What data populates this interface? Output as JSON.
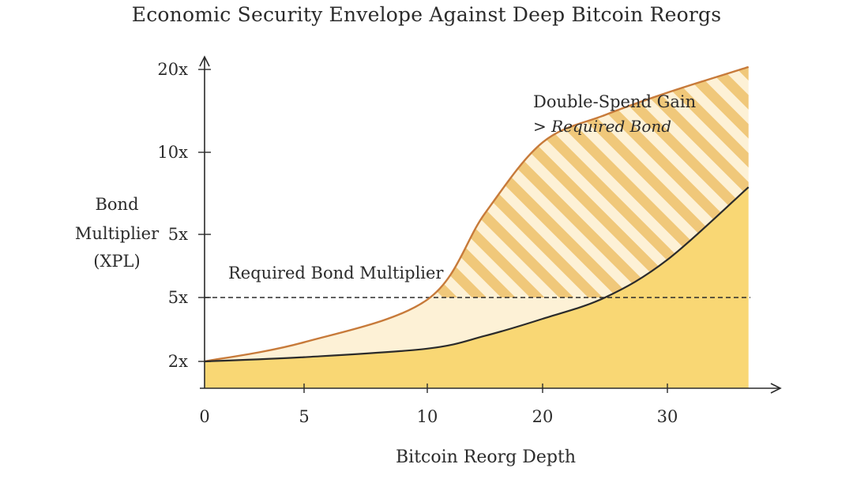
{
  "chart_data": {
    "type": "area",
    "title": "Economic Security Envelope Against Deep Bitcoin Reorgs",
    "xlabel": "Bitcoin Reorg Depth",
    "ylabel_lines": [
      "Bond",
      "Multiplier",
      "(XPL)"
    ],
    "x_ticks": [
      "0",
      "5",
      "10",
      "20",
      "30"
    ],
    "y_ticks": [
      "2x",
      "5x",
      "5x",
      "10x",
      "20x"
    ],
    "xlim": [
      0,
      37
    ],
    "series": [
      {
        "name": "Required Bond Multiplier",
        "color": "#2b2b2b",
        "points": [
          [
            0,
            2.0
          ],
          [
            5,
            2.2
          ],
          [
            10,
            2.6
          ],
          [
            15,
            3.2
          ],
          [
            20,
            4.0
          ],
          [
            25,
            5.0
          ],
          [
            30,
            6.3
          ],
          [
            36.5,
            8.8
          ]
        ]
      },
      {
        "name": "Double-Spend Gain",
        "color": "#c77a3a",
        "points": [
          [
            0,
            2.0
          ],
          [
            5,
            2.9
          ],
          [
            10,
            4.9
          ],
          [
            15,
            7.9
          ],
          [
            20,
            11.2
          ],
          [
            25,
            14.5
          ],
          [
            30,
            17.2
          ],
          [
            36.5,
            20.3
          ]
        ]
      }
    ],
    "threshold": {
      "y": "5x",
      "style": "dashed",
      "label": "Required Bond Multiplier"
    },
    "region_annotation": [
      "Double-Spend Gain",
      "> Required Bond"
    ],
    "colors": {
      "fill_below": "#f9d774",
      "fill_between": "#fdf1d6",
      "hatch": "#f0c87a",
      "gain_line": "#c77a3a",
      "bond_line": "#2b2b2b"
    }
  }
}
